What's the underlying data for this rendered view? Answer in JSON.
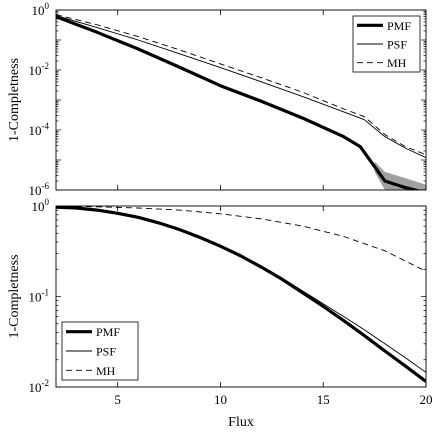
{
  "chart_data": [
    {
      "type": "line",
      "panel": "top",
      "xlim": [
        2,
        20
      ],
      "ylim": [
        1e-06,
        1
      ],
      "yscale": "log",
      "ylabel": "1-Completness",
      "xlabel": "",
      "xticks": [
        5,
        10,
        15,
        20
      ],
      "show_xticklabels": false,
      "yticks": [
        {
          "value": 1,
          "mantissa": "10",
          "exp": "0"
        },
        {
          "value": 0.01,
          "mantissa": "10",
          "exp": "-2"
        },
        {
          "value": 0.0001,
          "mantissa": "10",
          "exp": "-4"
        },
        {
          "value": 1e-06,
          "mantissa": "10",
          "exp": "-6"
        }
      ],
      "grid": false,
      "legend_position": "top-right",
      "series": [
        {
          "name": "PMF",
          "style": "thick",
          "color": "#000000",
          "x": [
            2,
            4,
            6,
            8,
            10,
            12,
            14,
            16,
            16.8,
            17.5,
            18,
            19,
            20
          ],
          "y": [
            0.6,
            0.18,
            0.05,
            0.0125,
            0.003,
            0.0009,
            0.00025,
            6e-05,
            2.8e-05,
            6e-06,
            2e-06,
            1.2e-06,
            8e-07
          ],
          "band_lower": [
            null,
            null,
            null,
            null,
            null,
            null,
            null,
            null,
            null,
            4e-06,
            1e-06,
            6e-07,
            3.5e-07
          ],
          "band_upper": [
            null,
            null,
            null,
            null,
            null,
            null,
            null,
            null,
            null,
            9e-06,
            4e-06,
            2.5e-06,
            1.5e-06
          ]
        },
        {
          "name": "PSF",
          "style": "thin",
          "color": "#000000",
          "x": [
            2,
            4,
            6,
            8,
            10,
            12,
            14,
            16,
            17,
            18,
            19,
            20
          ],
          "y": [
            0.65,
            0.26,
            0.1,
            0.035,
            0.012,
            0.004,
            0.0013,
            0.0004,
            0.00022,
            6e-05,
            2.5e-05,
            1.2e-05
          ]
        },
        {
          "name": "MH",
          "style": "dashed",
          "color": "#000000",
          "x": [
            2,
            4,
            6,
            8,
            10,
            12,
            14,
            16,
            17,
            18,
            19,
            20
          ],
          "y": [
            0.7,
            0.32,
            0.13,
            0.047,
            0.016,
            0.0055,
            0.0018,
            0.0005,
            0.00028,
            7e-05,
            2.8e-05,
            1.5e-05
          ]
        }
      ]
    },
    {
      "type": "line",
      "panel": "bottom",
      "xlim": [
        2,
        20
      ],
      "ylim": [
        0.01,
        1
      ],
      "yscale": "log",
      "ylabel": "1-Completness",
      "xlabel": "Flux",
      "xticks": [
        5,
        10,
        15,
        20
      ],
      "show_xticklabels": true,
      "yticks": [
        {
          "value": 1,
          "mantissa": "10",
          "exp": "0"
        },
        {
          "value": 0.1,
          "mantissa": "10",
          "exp": "-1"
        },
        {
          "value": 0.01,
          "mantissa": "10",
          "exp": "-2"
        }
      ],
      "grid": false,
      "legend_position": "bottom-left",
      "series": [
        {
          "name": "PMF",
          "style": "thick",
          "color": "#000000",
          "x": [
            2,
            3,
            4,
            5,
            6,
            7,
            8,
            9,
            10,
            11,
            12,
            13,
            14,
            15,
            16,
            17,
            18,
            19,
            20
          ],
          "y": [
            0.97,
            0.95,
            0.9,
            0.83,
            0.75,
            0.65,
            0.55,
            0.45,
            0.36,
            0.28,
            0.21,
            0.155,
            0.11,
            0.078,
            0.054,
            0.037,
            0.025,
            0.017,
            0.0115
          ]
        },
        {
          "name": "PSF",
          "style": "thin",
          "color": "#000000",
          "x": [
            2,
            3,
            4,
            5,
            6,
            7,
            8,
            9,
            10,
            11,
            12,
            13,
            14,
            15,
            16,
            17,
            18,
            19,
            20
          ],
          "y": [
            0.97,
            0.95,
            0.9,
            0.83,
            0.75,
            0.65,
            0.55,
            0.45,
            0.36,
            0.28,
            0.215,
            0.16,
            0.115,
            0.083,
            0.06,
            0.043,
            0.03,
            0.021,
            0.0145
          ]
        },
        {
          "name": "MH",
          "style": "dashed",
          "color": "#000000",
          "x": [
            2,
            4,
            6,
            8,
            10,
            12,
            14,
            16,
            18,
            20
          ],
          "y": [
            1.0,
            0.98,
            0.95,
            0.9,
            0.82,
            0.72,
            0.6,
            0.46,
            0.32,
            0.19
          ]
        }
      ]
    }
  ]
}
